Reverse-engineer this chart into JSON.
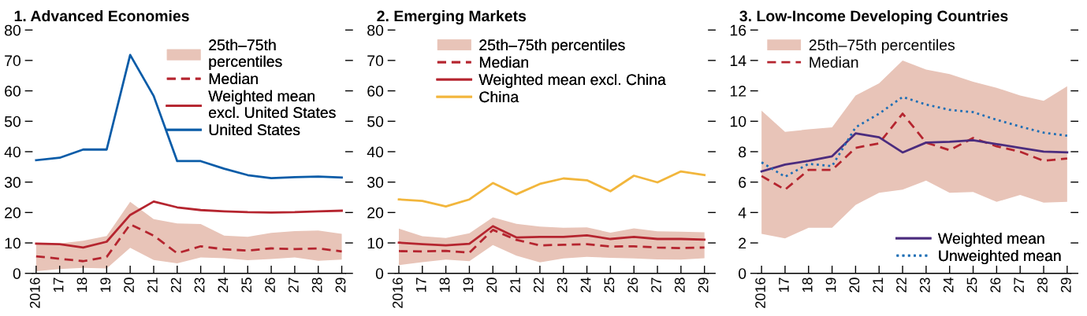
{
  "chart_data": [
    {
      "type": "line",
      "title": "1. Advanced Economies",
      "categories": [
        "2016",
        "17",
        "18",
        "19",
        "20",
        "21",
        "22",
        "23",
        "24",
        "25",
        "26",
        "27",
        "28",
        "29"
      ],
      "ylim": [
        0,
        80
      ],
      "yticks": [
        0,
        10,
        20,
        30,
        40,
        50,
        60,
        70,
        80
      ],
      "grid": false,
      "legend": "top right",
      "series": [
        {
          "name": "25th–75th\npercentiles",
          "type": "area",
          "color": "#e8c4b8",
          "values": [
            null,
            null,
            null,
            null,
            null,
            null,
            null,
            null,
            null,
            null,
            null,
            null,
            null,
            null
          ],
          "lower": [
            0.7,
            1.4,
            1.8,
            1.6,
            8.4,
            4.4,
            3.3,
            5.2,
            5.0,
            4.3,
            4.7,
            5.2,
            4.1,
            4.5
          ],
          "upper": [
            9.7,
            9.8,
            10.7,
            12.3,
            23.5,
            17.8,
            16.4,
            16.2,
            12.4,
            12.0,
            13.3,
            13.9,
            14.1,
            13.0
          ]
        },
        {
          "name": "Median",
          "line_style": "dashed",
          "color": "#b5252f",
          "values": [
            5.6,
            4.8,
            4.0,
            5.4,
            16.1,
            12.4,
            6.6,
            8.9,
            7.9,
            7.5,
            8.2,
            8.0,
            8.2,
            7.2
          ]
        },
        {
          "name": "Weighted mean\nexcl. United States",
          "line_style": "solid",
          "color": "#b5252f",
          "values": [
            9.8,
            9.6,
            8.5,
            10.4,
            19.2,
            23.6,
            21.7,
            20.8,
            20.4,
            20.1,
            20.0,
            20.1,
            20.4,
            20.6
          ]
        },
        {
          "name": "United States",
          "line_style": "solid",
          "color": "#0a5ca8",
          "values": [
            37.2,
            38.0,
            40.7,
            40.7,
            71.8,
            58.3,
            36.9,
            36.9,
            34.4,
            32.3,
            31.3,
            31.6,
            31.8,
            31.5
          ]
        }
      ]
    },
    {
      "type": "line",
      "title": "2. Emerging Markets",
      "categories": [
        "2016",
        "17",
        "18",
        "19",
        "20",
        "21",
        "22",
        "23",
        "24",
        "25",
        "26",
        "27",
        "28",
        "29"
      ],
      "ylim": [
        0,
        80
      ],
      "yticks": [
        0,
        10,
        20,
        30,
        40,
        50,
        60,
        70,
        80
      ],
      "grid": false,
      "legend": "top",
      "series": [
        {
          "name": "25th–75th percentiles",
          "type": "area",
          "color": "#e8c4b8",
          "values": [
            null,
            null,
            null,
            null,
            null,
            null,
            null,
            null,
            null,
            null,
            null,
            null,
            null,
            null
          ],
          "lower": [
            2.7,
            3.7,
            4.5,
            4.0,
            9.3,
            5.8,
            3.6,
            4.9,
            5.4,
            5.1,
            4.9,
            4.6,
            4.5,
            5.0
          ],
          "upper": [
            14.7,
            12.2,
            11.6,
            13.2,
            18.4,
            16.3,
            15.4,
            15.0,
            15.1,
            13.4,
            14.8,
            13.8,
            13.7,
            13.5
          ]
        },
        {
          "name": "Median",
          "line_style": "dashed",
          "color": "#b5252f",
          "values": [
            7.3,
            7.2,
            7.4,
            6.8,
            14.3,
            11.0,
            9.2,
            9.4,
            9.6,
            8.8,
            8.9,
            8.5,
            8.3,
            8.5
          ]
        },
        {
          "name": "Weighted mean excl. China",
          "line_style": "solid",
          "color": "#b5252f",
          "values": [
            10.1,
            9.6,
            9.2,
            9.7,
            15.5,
            11.8,
            12.0,
            12.0,
            12.5,
            11.3,
            12.0,
            11.3,
            11.3,
            11.1
          ]
        },
        {
          "name": "China",
          "line_style": "solid",
          "color": "#f2b63c",
          "values": [
            24.3,
            23.8,
            22.0,
            24.3,
            29.7,
            26.0,
            29.4,
            31.2,
            30.6,
            27.0,
            32.1,
            29.9,
            33.5,
            32.3
          ]
        }
      ]
    },
    {
      "type": "line",
      "title": "3. Low-Income Developing Countries",
      "categories": [
        "2016",
        "17",
        "18",
        "19",
        "20",
        "21",
        "22",
        "23",
        "24",
        "25",
        "26",
        "27",
        "28",
        "29"
      ],
      "ylim": [
        0,
        16
      ],
      "yticks": [
        0,
        2,
        4,
        6,
        8,
        10,
        12,
        14,
        16
      ],
      "grid": false,
      "legend": [
        "top left",
        "bottom right"
      ],
      "series": [
        {
          "name": "25th–75th percentiles",
          "type": "area",
          "color": "#e8c4b8",
          "values": [
            null,
            null,
            null,
            null,
            null,
            null,
            null,
            null,
            null,
            null,
            null,
            null,
            null,
            null
          ],
          "lower": [
            2.6,
            2.3,
            3.0,
            3.0,
            4.5,
            5.3,
            5.5,
            6.1,
            5.3,
            5.35,
            4.7,
            5.15,
            4.65,
            4.7
          ],
          "upper": [
            10.7,
            9.3,
            9.47,
            9.6,
            11.7,
            12.5,
            14.0,
            13.4,
            13.1,
            12.6,
            12.2,
            11.7,
            11.35,
            12.3
          ]
        },
        {
          "name": "Median",
          "line_style": "dashed",
          "color": "#b5252f",
          "values": [
            6.4,
            5.5,
            6.8,
            6.8,
            8.25,
            8.55,
            10.5,
            8.6,
            8.1,
            8.9,
            8.35,
            8.0,
            7.4,
            7.55
          ]
        },
        {
          "name": "Weighted mean",
          "line_style": "solid",
          "color": "#4b2c7e",
          "values": [
            6.7,
            7.15,
            7.4,
            7.7,
            9.2,
            8.95,
            7.95,
            8.6,
            8.65,
            8.75,
            8.5,
            8.25,
            8.0,
            7.95
          ]
        },
        {
          "name": "Unweighted mean",
          "line_style": "dotted",
          "color": "#1f6fb5",
          "values": [
            7.3,
            6.35,
            7.2,
            7.05,
            9.6,
            10.5,
            11.6,
            11.1,
            10.75,
            10.6,
            10.1,
            9.65,
            9.25,
            9.05
          ]
        }
      ]
    }
  ]
}
